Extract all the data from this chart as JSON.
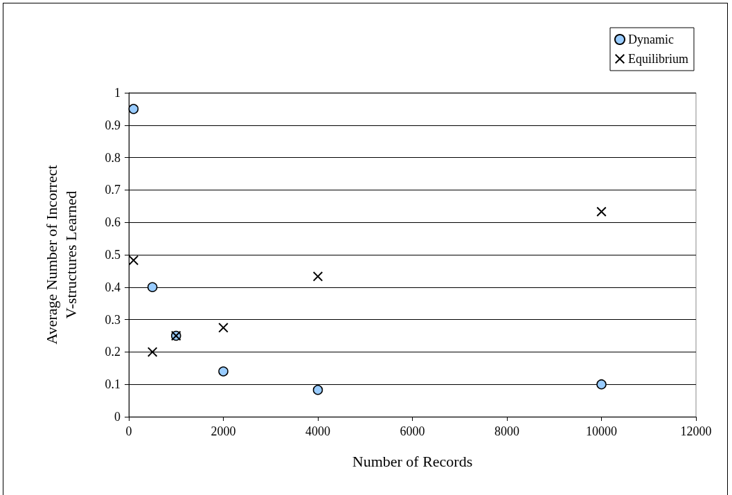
{
  "chart_data": {
    "type": "scatter",
    "xlabel": "Number of Records",
    "ylabel": "Average Number of Incorrect\nV-structures Learned",
    "series": [
      {
        "name": "Dynamic",
        "color": "#99ccff",
        "marker": "circle",
        "x": [
          100,
          500,
          1000,
          2000,
          4000,
          10000
        ],
        "values": [
          0.95,
          0.4,
          0.25,
          0.14,
          0.083,
          0.1
        ]
      },
      {
        "name": "Equilibrium",
        "color": "#000000",
        "marker": "cross",
        "x": [
          100,
          500,
          1000,
          2000,
          4000,
          10000
        ],
        "values": [
          0.483,
          0.2,
          0.25,
          0.275,
          0.433,
          0.633
        ]
      }
    ],
    "xlim": [
      0,
      12000
    ],
    "xticks": [
      0,
      2000,
      4000,
      6000,
      8000,
      10000,
      12000
    ],
    "ylim": [
      0,
      1
    ],
    "yticks": [
      0,
      0.1,
      0.2,
      0.3,
      0.4,
      0.5,
      0.6,
      0.7,
      0.8,
      0.9,
      1
    ],
    "grid": "y",
    "legend": "top right"
  }
}
